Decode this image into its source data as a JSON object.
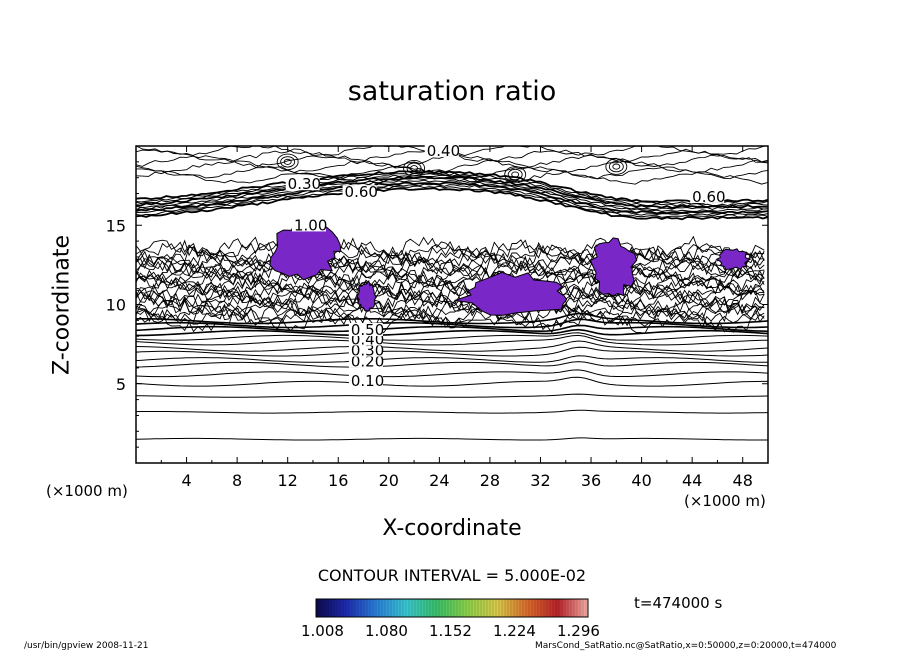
{
  "chart_data": {
    "type": "contour",
    "title": "saturation ratio",
    "xlabel": "X-coordinate",
    "ylabel": "Z-coordinate",
    "x_unit": "(×1000 m)",
    "xlim": [
      0,
      50
    ],
    "ylim": [
      0,
      20
    ],
    "x_ticks": [
      4,
      8,
      12,
      16,
      20,
      24,
      28,
      32,
      36,
      40,
      44,
      48
    ],
    "y_ticks": [
      5,
      10,
      15
    ],
    "contour_interval_text": "CONTOUR INTERVAL = 5.000E-02",
    "contour_labels": [
      {
        "text": "0.10",
        "x": 17.0,
        "z": 5.0
      },
      {
        "text": "0.20",
        "x": 17.0,
        "z": 6.2
      },
      {
        "text": "0.30",
        "x": 17.0,
        "z": 6.9
      },
      {
        "text": "0.40",
        "x": 17.0,
        "z": 7.6
      },
      {
        "text": "0.50",
        "x": 17.0,
        "z": 8.2
      },
      {
        "text": "0.40",
        "x": 23.0,
        "z": 19.5
      },
      {
        "text": "0.30",
        "x": 12.0,
        "z": 17.4
      },
      {
        "text": "0.60",
        "x": 16.5,
        "z": 16.9
      },
      {
        "text": "0.60",
        "x": 44.0,
        "z": 16.6
      },
      {
        "text": "1.00",
        "x": 12.5,
        "z": 14.8
      }
    ],
    "supersaturated_regions": [
      {
        "x": [
          10.5,
          16.0
        ],
        "z": [
          11.5,
          15.2
        ]
      },
      {
        "x": [
          17.5,
          19.0
        ],
        "z": [
          9.5,
          11.5
        ]
      },
      {
        "x": [
          25.5,
          34.5
        ],
        "z": [
          9.2,
          12.0
        ]
      },
      {
        "x": [
          36.0,
          39.5
        ],
        "z": [
          10.5,
          14.2
        ]
      },
      {
        "x": [
          46.0,
          48.5
        ],
        "z": [
          12.2,
          13.5
        ]
      }
    ],
    "colorbar": {
      "ticks": [
        "1.008",
        "1.080",
        "1.152",
        "1.224",
        "1.296"
      ],
      "colors": [
        "#0b0b4a",
        "#1e2bb0",
        "#2a7fd8",
        "#39c7d0",
        "#3ac06a",
        "#8cd14a",
        "#d9c94a",
        "#d86a2a",
        "#b8232a",
        "#f4b0a8"
      ]
    },
    "fill_color": "#7a27c8"
  },
  "annotations": {
    "time": "t=474000 s",
    "footer_left": "/usr/bin/gpview  2008-11-21",
    "footer_right": "MarsCond_SatRatio.nc@SatRatio,x=0:50000,z=0:20000,t=474000"
  }
}
